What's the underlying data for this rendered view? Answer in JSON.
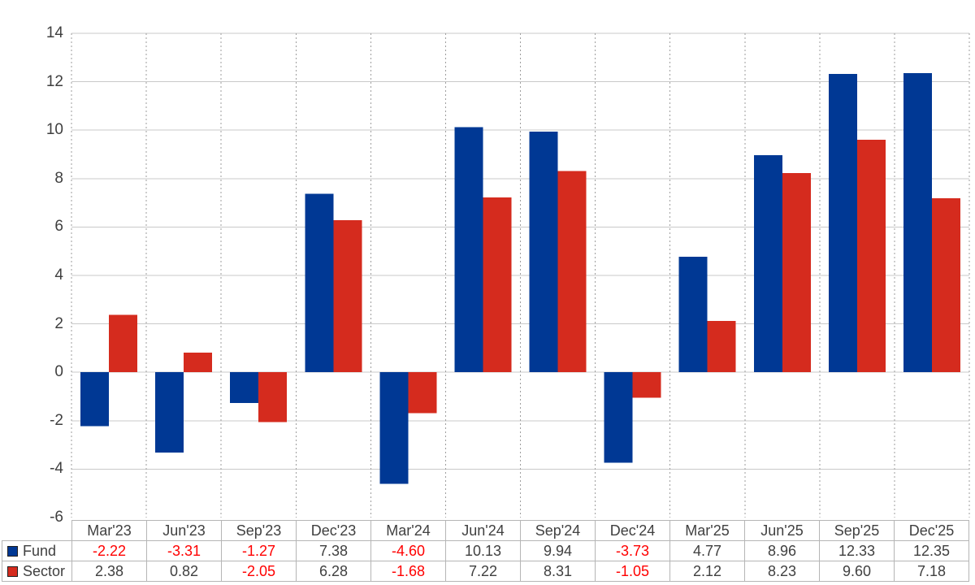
{
  "chart_data": {
    "type": "bar",
    "title": "",
    "xlabel": "",
    "ylabel": "",
    "categories": [
      "Mar'23",
      "Jun'23",
      "Sep'23",
      "Dec'23",
      "Mar'24",
      "Jun'24",
      "Sep'24",
      "Dec'24",
      "Mar'25",
      "Jun'25",
      "Sep'25",
      "Dec'25"
    ],
    "series": [
      {
        "name": "Fund",
        "color": "#003894",
        "values": [
          -2.22,
          -3.31,
          -1.27,
          7.38,
          -4.6,
          10.13,
          9.94,
          -3.73,
          4.77,
          8.96,
          12.33,
          12.35
        ]
      },
      {
        "name": "Sector",
        "color": "#d52b1e",
        "values": [
          2.38,
          0.82,
          -2.05,
          6.28,
          -1.68,
          7.22,
          8.31,
          -1.05,
          2.12,
          8.23,
          9.6,
          7.18
        ]
      }
    ],
    "ylim": [
      -6,
      14
    ],
    "ytick_step": 2,
    "ytick_labels": [
      "14",
      "12",
      "10",
      "8",
      "6",
      "4",
      "2",
      "0",
      "-2",
      "-4",
      "-6"
    ],
    "grid": {
      "horizontal": "solid",
      "vertical": "dotted"
    },
    "legend_position": "table-left-column",
    "value_decimals": 2,
    "colors": {
      "grid_horizontal": "#c9c9c9",
      "grid_vertical": "#9e9e9e",
      "table_border": "#b5b5b5",
      "text": "#404040",
      "negative_value_text": "#ff0000"
    }
  }
}
